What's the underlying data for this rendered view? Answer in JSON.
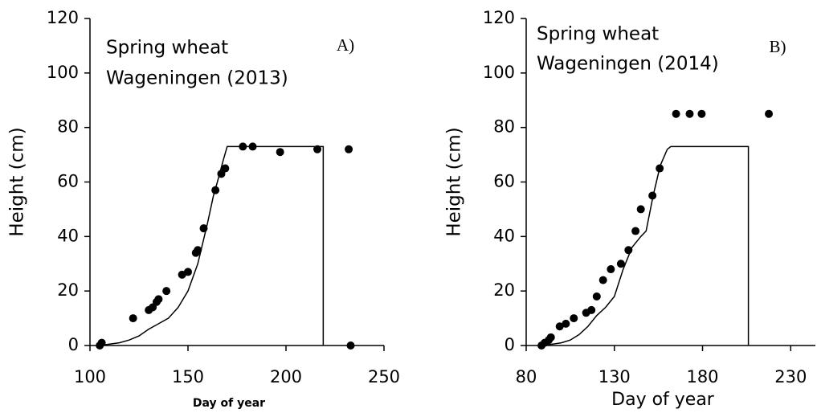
{
  "chart_data": [
    {
      "type": "scatter",
      "annotations": [
        "Spring wheat",
        "Wageningen (2013)",
        "A)"
      ],
      "xlabel": "Day of year",
      "ylabel": "Height (cm)",
      "xlim": [
        100,
        250
      ],
      "xticks": [
        100,
        150,
        200,
        250
      ],
      "ylim": [
        0,
        120
      ],
      "yticks": [
        0,
        20,
        40,
        60,
        80,
        100,
        120
      ],
      "series": [
        {
          "type": "scatter",
          "color": "#000000",
          "x": [
            105,
            106,
            122,
            130,
            132,
            134,
            135,
            139,
            147,
            150,
            154,
            155,
            158,
            164,
            167,
            169,
            178,
            183,
            197,
            216,
            232,
            233
          ],
          "values": [
            0,
            1,
            10,
            13,
            14,
            16,
            17,
            20,
            26,
            27,
            34,
            35,
            43,
            57,
            63,
            65,
            73,
            73,
            71,
            72,
            72,
            0
          ]
        },
        {
          "type": "line",
          "color": "#000000",
          "x": [
            105,
            110,
            115,
            120,
            125,
            130,
            135,
            140,
            145,
            150,
            155,
            160,
            163,
            165,
            168,
            170,
            219,
            219
          ],
          "values": [
            0,
            0.5,
            1,
            2,
            3.5,
            6,
            8,
            10,
            14,
            20,
            30,
            45,
            55,
            60,
            68,
            73,
            73,
            0
          ]
        }
      ]
    },
    {
      "type": "scatter",
      "annotations": [
        "Spring wheat",
        "Wageningen (2014)",
        "B)"
      ],
      "xlabel": "Day of year",
      "ylabel": "Height (cm)",
      "xlim": [
        80,
        244
      ],
      "xticks": [
        80,
        130,
        180,
        230
      ],
      "ylim": [
        0,
        120
      ],
      "yticks": [
        0,
        20,
        40,
        60,
        80,
        100,
        120
      ],
      "series": [
        {
          "type": "scatter",
          "color": "#000000",
          "x": [
            88.7,
            90.5,
            92.8,
            94,
            99,
            102.5,
            107,
            114,
            117,
            120,
            123.6,
            128,
            133.7,
            138,
            142,
            145,
            151.6,
            155.7,
            165,
            172.7,
            179.5,
            217.6
          ],
          "values": [
            0,
            1,
            2,
            3,
            7,
            8,
            10,
            12,
            13,
            18,
            24,
            28,
            30,
            35,
            42,
            50,
            55,
            65,
            85,
            85,
            85,
            85
          ]
        },
        {
          "type": "line",
          "color": "#000000",
          "x": [
            88,
            95,
            100,
            105,
            110,
            115,
            120,
            125,
            130,
            135,
            140,
            145,
            148,
            152,
            156,
            160,
            162,
            206,
            206
          ],
          "values": [
            0,
            0.5,
            1,
            2,
            4,
            7,
            11,
            14,
            18,
            28,
            36,
            40,
            42,
            55,
            66,
            72,
            73,
            73,
            0
          ]
        }
      ]
    }
  ]
}
